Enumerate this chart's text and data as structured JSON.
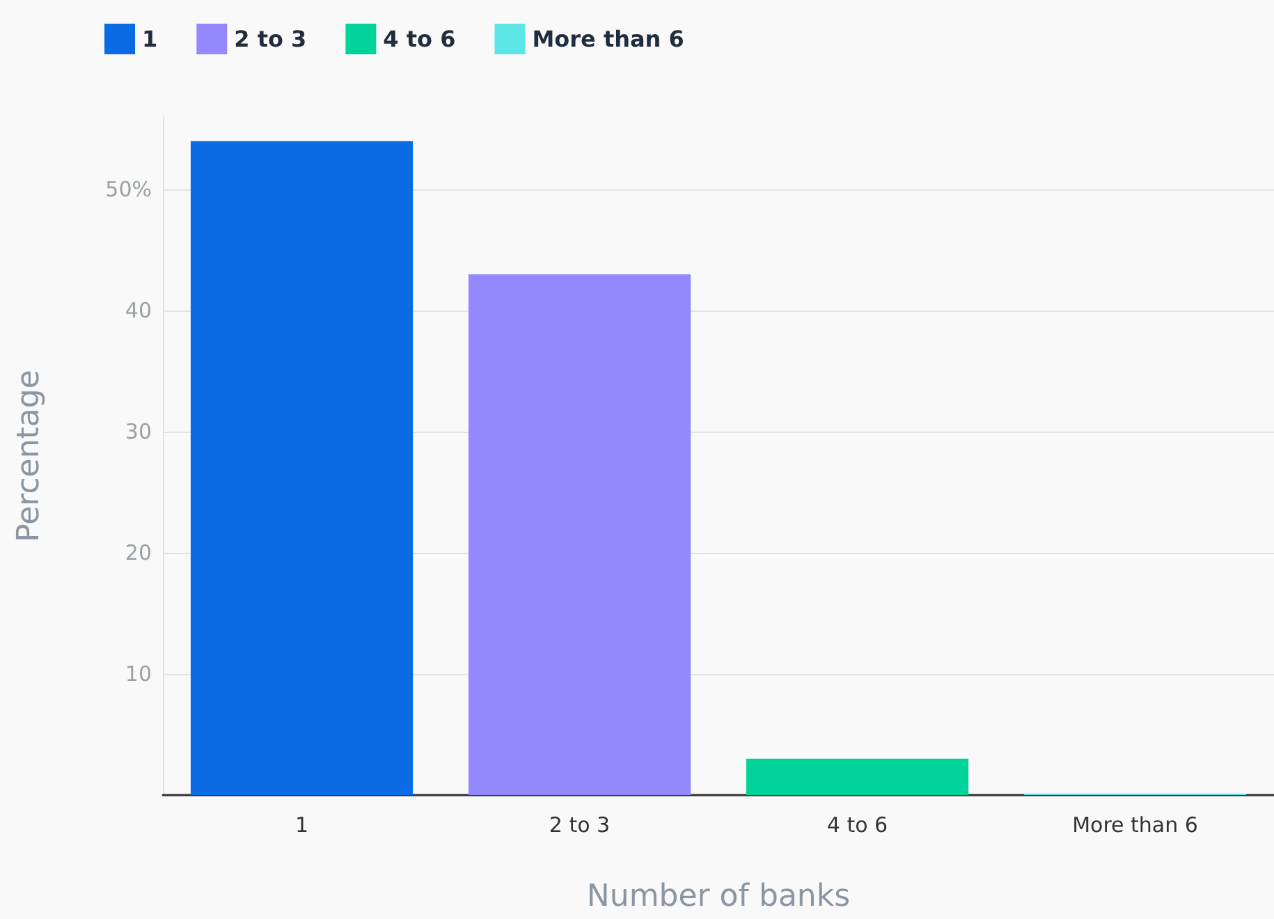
{
  "chart_data": {
    "type": "bar",
    "xlabel": "Number of banks",
    "ylabel": "Percentage",
    "categories": [
      "1",
      "2 to 3",
      "4 to 6",
      "More than 6"
    ],
    "series": [
      {
        "name": "1",
        "color": "#0b6be4",
        "values": [
          54,
          null,
          null,
          null
        ]
      },
      {
        "name": "2 to 3",
        "color": "#9388fd",
        "values": [
          null,
          43,
          null,
          null
        ]
      },
      {
        "name": "4 to 6",
        "color": "#00d49a",
        "values": [
          null,
          null,
          3,
          null
        ]
      },
      {
        "name": "More than 6",
        "color": "#5ce6e6",
        "values": [
          null,
          null,
          null,
          0.1
        ]
      }
    ],
    "stacked": true,
    "ylim": [
      0,
      56
    ],
    "yticks": [
      {
        "value": 0,
        "label": null
      },
      10,
      20,
      30,
      40,
      {
        "value": 50,
        "label": "50%"
      }
    ],
    "grid": "y",
    "legend": "top left"
  }
}
